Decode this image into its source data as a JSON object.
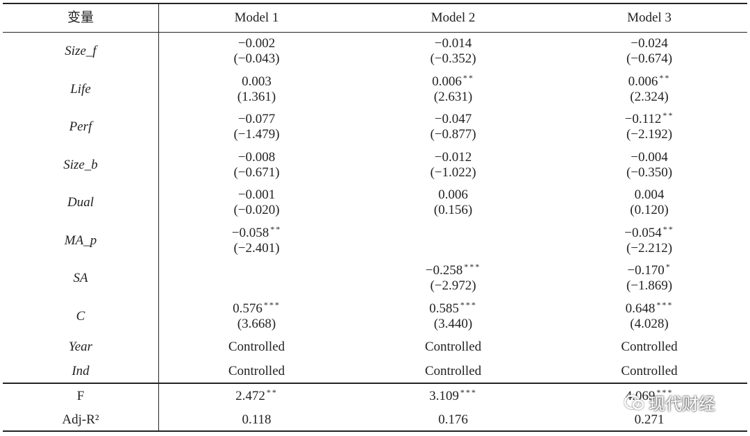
{
  "table": {
    "header": [
      "变量",
      "Model 1",
      "Model 2",
      "Model 3"
    ],
    "rows": [
      {
        "label": "Size_f",
        "cells": [
          {
            "coef": "−0.002",
            "t": "(−0.043)"
          },
          {
            "coef": "−0.014",
            "t": "(−0.352)"
          },
          {
            "coef": "−0.024",
            "t": "(−0.674)"
          }
        ]
      },
      {
        "label": "Life",
        "cells": [
          {
            "coef": "0.003",
            "t": "(1.361)"
          },
          {
            "coef": "0.006",
            "sig": "**",
            "t": "(2.631)"
          },
          {
            "coef": "0.006",
            "sig": "**",
            "t": "(2.324)"
          }
        ]
      },
      {
        "label": "Perf",
        "cells": [
          {
            "coef": "−0.077",
            "t": "(−1.479)"
          },
          {
            "coef": "−0.047",
            "t": "(−0.877)"
          },
          {
            "coef": "−0.112",
            "sig": "**",
            "t": "(−2.192)"
          }
        ]
      },
      {
        "label": "Size_b",
        "cells": [
          {
            "coef": "−0.008",
            "t": "(−0.671)"
          },
          {
            "coef": "−0.012",
            "t": "(−1.022)"
          },
          {
            "coef": "−0.004",
            "t": "(−0.350)"
          }
        ]
      },
      {
        "label": "Dual",
        "cells": [
          {
            "coef": "−0.001",
            "t": "(−0.020)"
          },
          {
            "coef": "0.006",
            "t": "(0.156)"
          },
          {
            "coef": "0.004",
            "t": "(0.120)"
          }
        ]
      },
      {
        "label": "MA_p",
        "cells": [
          {
            "coef": "−0.058",
            "sig": "**",
            "t": "(−2.401)"
          },
          null,
          {
            "coef": "−0.054",
            "sig": "**",
            "t": "(−2.212)"
          }
        ]
      },
      {
        "label": "SA",
        "cells": [
          null,
          {
            "coef": "−0.258",
            "sig": "***",
            "t": "(−2.972)"
          },
          {
            "coef": "−0.170",
            "sig": "*",
            "t": "(−1.869)"
          }
        ]
      },
      {
        "label": "C",
        "cells": [
          {
            "coef": "0.576",
            "sig": "***",
            "t": "(3.668)"
          },
          {
            "coef": "0.585",
            "sig": "***",
            "t": "(3.440)"
          },
          {
            "coef": "0.648",
            "sig": "***",
            "t": "(4.028)"
          }
        ]
      }
    ],
    "controls": [
      {
        "label": "Year",
        "cells": [
          "Controlled",
          "Controlled",
          "Controlled"
        ]
      },
      {
        "label": "Ind",
        "cells": [
          "Controlled",
          "Controlled",
          "Controlled"
        ]
      }
    ],
    "stats": [
      {
        "label": "F",
        "cells": [
          {
            "value": "2.472",
            "sig": "**"
          },
          {
            "value": "3.109",
            "sig": "***"
          },
          {
            "value": "4.069",
            "sig": "***"
          }
        ]
      },
      {
        "label": "Adj-R²",
        "cells": [
          {
            "value": "0.118"
          },
          {
            "value": "0.176"
          },
          {
            "value": "0.271"
          }
        ]
      }
    ]
  },
  "watermark": "现代财经"
}
